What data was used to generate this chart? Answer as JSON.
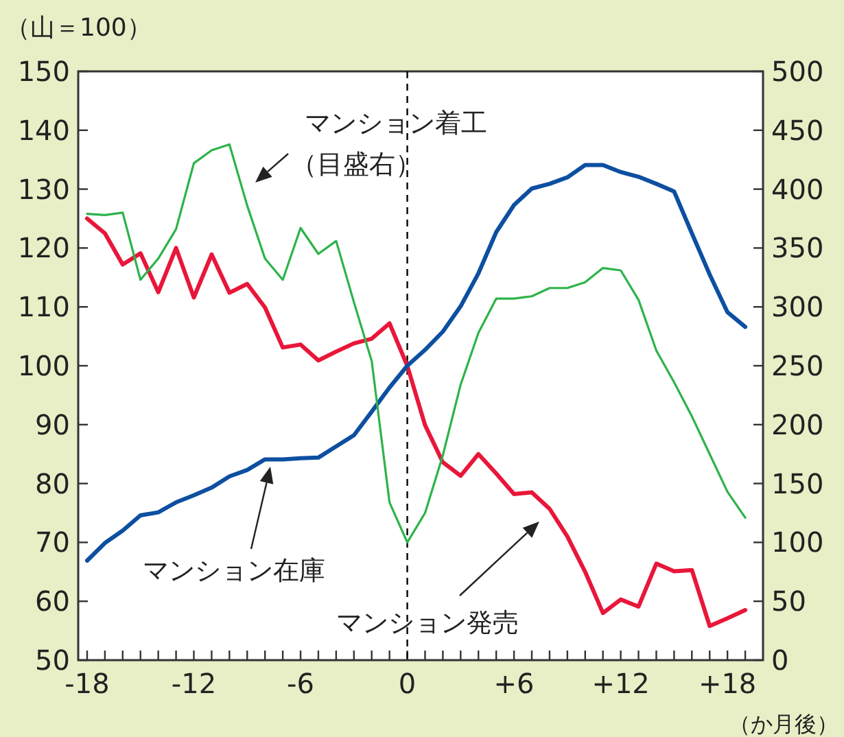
{
  "chart_data": {
    "type": "line",
    "ylabel": "（山＝100）",
    "xlabel": "（か月後）",
    "x": [
      -18,
      -17,
      -16,
      -15,
      -14,
      -13,
      -12,
      -11,
      -10,
      -9,
      -8,
      -7,
      -6,
      -5,
      -4,
      -3,
      -2,
      -1,
      0,
      1,
      2,
      3,
      4,
      5,
      6,
      7,
      8,
      9,
      10,
      11,
      12,
      13,
      14,
      15,
      16,
      17,
      18,
      19
    ],
    "series": [
      {
        "name": "マンション発売",
        "color": "#e8173a",
        "values": [
          125.0,
          122.5,
          117.2,
          119.1,
          112.5,
          120.0,
          111.6,
          118.9,
          112.4,
          113.9,
          109.9,
          103.1,
          103.6,
          100.9,
          102.4,
          103.8,
          104.6,
          107.2,
          100,
          89.9,
          83.6,
          81.3,
          85.0,
          81.7,
          78.2,
          78.5,
          75.7,
          71.0,
          65.0,
          58.0,
          60.3,
          59.1,
          66.4,
          65.1,
          65.3,
          55.8,
          57.1,
          58.5
        ]
      },
      {
        "name": "マンション在庫",
        "color": "#0d4fa0",
        "values": [
          66.9,
          69.9,
          72.0,
          74.6,
          75.1,
          76.8,
          78.0,
          79.3,
          81.2,
          82.3,
          84.1,
          84.1,
          84.3,
          84.4,
          86.3,
          88.2,
          92.2,
          96.3,
          100,
          102.7,
          105.8,
          110.1,
          115.7,
          122.7,
          127.3,
          130.1,
          130.9,
          132.0,
          134.1,
          134.1,
          132.9,
          132.1,
          130.9,
          129.6,
          122.5,
          115.5,
          109.1,
          106.6
        ]
      },
      {
        "name": "マンション着工",
        "color": "#2db34a",
        "axis": "y2",
        "values": [
          379,
          378,
          380,
          323,
          341,
          366,
          422,
          433,
          438,
          386,
          341,
          323,
          367,
          345,
          356,
          304,
          254,
          134,
          100,
          125,
          174,
          234,
          278,
          307,
          307,
          309,
          316,
          316,
          321,
          333,
          331,
          306,
          263,
          236,
          207,
          175,
          143,
          121
        ]
      }
    ],
    "annotations": [
      "（目盛右）"
    ],
    "xlim": [
      -18.5,
      20
    ],
    "ylim": [
      50,
      150
    ],
    "y2lim": [
      0,
      500
    ],
    "xticks": [
      {
        "value": -18,
        "label": "-18"
      },
      {
        "value": -17,
        "label": null
      },
      {
        "value": -16,
        "label": null
      },
      {
        "value": -15,
        "label": null
      },
      {
        "value": -14,
        "label": null
      },
      {
        "value": -13,
        "label": null
      },
      {
        "value": -12,
        "label": "-12"
      },
      {
        "value": -11,
        "label": null
      },
      {
        "value": -10,
        "label": null
      },
      {
        "value": -9,
        "label": null
      },
      {
        "value": -8,
        "label": null
      },
      {
        "value": -7,
        "label": null
      },
      {
        "value": -6,
        "label": "-6"
      },
      {
        "value": -5,
        "label": null
      },
      {
        "value": -4,
        "label": null
      },
      {
        "value": -3,
        "label": null
      },
      {
        "value": -2,
        "label": null
      },
      {
        "value": -1,
        "label": null
      },
      {
        "value": 0,
        "label": "0"
      },
      {
        "value": 1,
        "label": null
      },
      {
        "value": 2,
        "label": null
      },
      {
        "value": 3,
        "label": null
      },
      {
        "value": 4,
        "label": null
      },
      {
        "value": 5,
        "label": null
      },
      {
        "value": 6,
        "label": "+6"
      },
      {
        "value": 7,
        "label": null
      },
      {
        "value": 8,
        "label": null
      },
      {
        "value": 9,
        "label": null
      },
      {
        "value": 10,
        "label": null
      },
      {
        "value": 11,
        "label": null
      },
      {
        "value": 12,
        "label": "+12"
      },
      {
        "value": 13,
        "label": null
      },
      {
        "value": 14,
        "label": null
      },
      {
        "value": 15,
        "label": null
      },
      {
        "value": 16,
        "label": null
      },
      {
        "value": 17,
        "label": null
      },
      {
        "value": 18,
        "label": "+18"
      },
      {
        "value": 19,
        "label": null
      }
    ],
    "yticks": [
      50,
      60,
      70,
      80,
      90,
      100,
      110,
      120,
      130,
      140,
      150
    ],
    "y2ticks": [
      0,
      50,
      100,
      150,
      200,
      250,
      300,
      350,
      400,
      450,
      500
    ],
    "ref_lines": [
      {
        "axis": "x",
        "value": 0,
        "line_style": "dashed",
        "color": "#000000"
      }
    ],
    "grid": false,
    "marker": "none",
    "line_style": "solid"
  }
}
